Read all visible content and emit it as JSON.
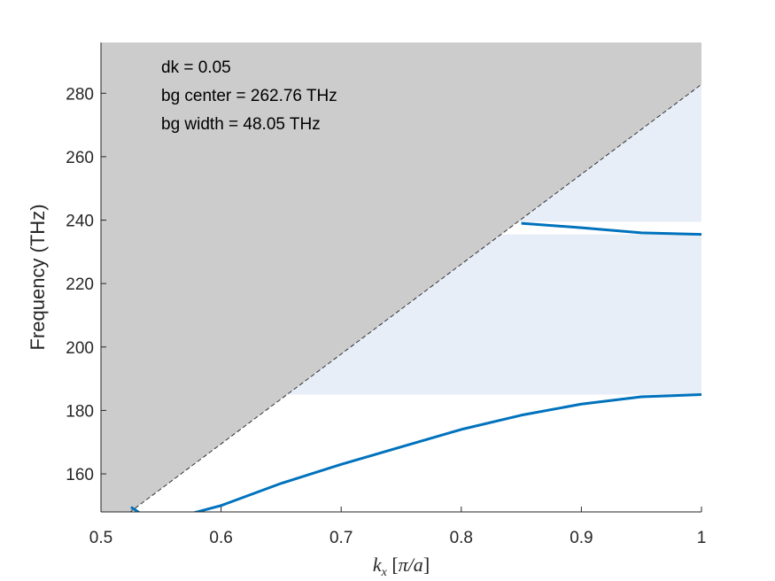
{
  "chart_data": {
    "type": "line",
    "xlabel": "k_x [π/a]",
    "ylabel": "Frequency (THz)",
    "xlim": [
      0.5,
      1.0
    ],
    "ylim": [
      148,
      296
    ],
    "x_ticks": [
      "0.5",
      "0.6",
      "0.7",
      "0.8",
      "0.9",
      "1"
    ],
    "y_ticks": [
      "160",
      "180",
      "200",
      "220",
      "240",
      "260",
      "280"
    ],
    "x_tick_values": [
      0.5,
      0.6,
      0.7,
      0.8,
      0.9,
      1.0
    ],
    "y_tick_values": [
      160,
      180,
      200,
      220,
      240,
      260,
      280
    ],
    "annotations": [
      "dk = 0.05",
      "bg center = 262.76 THz",
      "bg width = 48.05 THz"
    ],
    "light_line": {
      "x": [
        0.5,
        1.0
      ],
      "y": [
        141.1,
        282.8
      ],
      "fill_color": "#cccccc",
      "line_style": "dashed"
    },
    "bandgaps": [
      {
        "y0": 185,
        "y1": 235.5,
        "x_start": 0.5,
        "color": "#e8eef7"
      },
      {
        "y0": 239.5,
        "y1": 282.8,
        "x_start": 0.5,
        "color": "#e8eef7"
      }
    ],
    "series": [
      {
        "x": [
          0.5,
          0.55,
          0.6,
          0.65,
          0.7,
          0.75,
          0.8,
          0.85,
          0.9,
          0.95,
          1.0
        ],
        "values": [
          141,
          145,
          150,
          157,
          163,
          168.5,
          174,
          178.5,
          182,
          184.3,
          185
        ]
      },
      {
        "x": [
          0.85,
          0.9,
          0.95,
          1.0
        ],
        "values": [
          239,
          237.6,
          236,
          235.5
        ]
      },
      {
        "x": [
          0.525,
          0.535
        ],
        "values": [
          149.5,
          147
        ]
      }
    ],
    "series_color": "#0072bd",
    "grid": false
  }
}
